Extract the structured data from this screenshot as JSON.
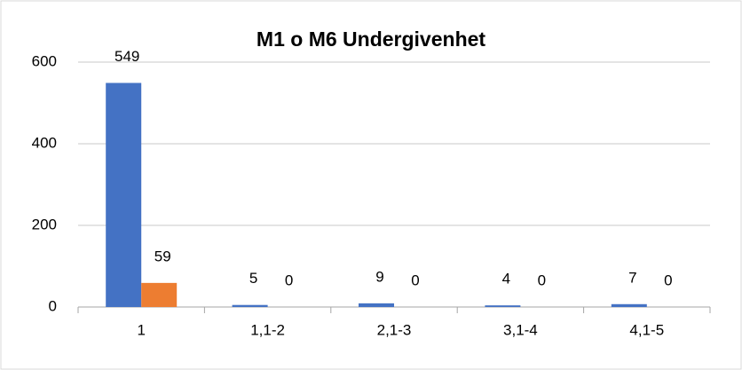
{
  "chart_data": {
    "type": "bar",
    "title": "M1 o M6 Undergivenhet",
    "categories": [
      "1",
      "1,1-2",
      "2,1-3",
      "3,1-4",
      "4,1-5"
    ],
    "series": [
      {
        "color": "#4472c4",
        "values": [
          549,
          5,
          9,
          4,
          7
        ]
      },
      {
        "color": "#ed7d31",
        "values": [
          59,
          0,
          0,
          0,
          0
        ]
      }
    ],
    "ylim": [
      0,
      600
    ],
    "yticks": [
      0,
      200,
      400,
      600
    ],
    "grid": true
  }
}
